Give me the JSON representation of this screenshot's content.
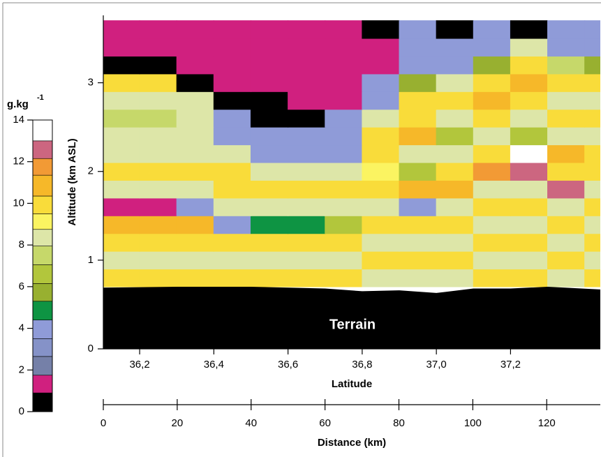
{
  "chart_data": {
    "type": "contour",
    "y_label": "Altitude (km ASL)",
    "x_label": "Latitude",
    "x2_label": "Distance (km)",
    "annotation": "Terrain",
    "xlim": [
      36.102,
      37.442
    ],
    "xticks": [
      {
        "value": 36.2,
        "label": "36,2"
      },
      {
        "value": 36.4,
        "label": "36,4"
      },
      {
        "value": 36.6,
        "label": "36,6"
      },
      {
        "value": 36.8,
        "label": "36,8"
      },
      {
        "value": 37.0,
        "label": "37,0"
      },
      {
        "value": 37.2,
        "label": "37,2"
      }
    ],
    "ylim": [
      0,
      3.76
    ],
    "yticks": [
      0,
      1,
      2,
      3
    ],
    "x2lim": [
      0,
      134.5
    ],
    "x2ticks": [
      0,
      20,
      40,
      60,
      80,
      100,
      120
    ],
    "colorbar": {
      "unit": "g.kg",
      "unit_exponent": "-1",
      "lim": [
        0,
        14
      ],
      "ticks": [
        0,
        2,
        4,
        6,
        8,
        10,
        12,
        14
      ],
      "levels": [
        0,
        0.9,
        1.75,
        2.65,
        3.5,
        4.4,
        5.3,
        6.15,
        7.05,
        7.95,
        8.75,
        9.5,
        10.35,
        11.35,
        12.15,
        13,
        14
      ],
      "colors": [
        "#000000",
        "#d0207f",
        "#7580a8",
        "#8592c8",
        "#8f9bd8",
        "#0e9443",
        "#98b030",
        "#b2c63c",
        "#c6d86a",
        "#dde6a8",
        "#fbf461",
        "#f9dc3a",
        "#f6b829",
        "#f29a35",
        "#cc6680",
        "#ffffff"
      ]
    },
    "x": [
      36.15,
      36.25,
      36.35,
      36.45,
      36.55,
      36.65,
      36.75,
      36.85,
      36.95,
      37.05,
      37.15,
      37.25,
      37.35,
      37.45
    ],
    "y": [
      0.8,
      1.0,
      1.2,
      1.4,
      1.6,
      1.8,
      2.0,
      2.2,
      2.4,
      2.6,
      2.8,
      3.0,
      3.2,
      3.4,
      3.6
    ],
    "z": [
      [
        9.5,
        9.5,
        9.5,
        9.5,
        9.5,
        9.5,
        9.5,
        8.5,
        8.5,
        8.5,
        10,
        10,
        8.5,
        10
      ],
      [
        8,
        8,
        8.5,
        8.5,
        8.5,
        8.5,
        8.5,
        9.5,
        10,
        10,
        8.5,
        8.5,
        10,
        8.5
      ],
      [
        10,
        10,
        10,
        10,
        10,
        10,
        9.5,
        8,
        8.5,
        8.5,
        10,
        10,
        8.5,
        10
      ],
      [
        11,
        11,
        11,
        3.5,
        5,
        5,
        6.5,
        10,
        10,
        10,
        8.5,
        8.5,
        10,
        8.5
      ],
      [
        1,
        1,
        4,
        8.5,
        8.5,
        8.5,
        8,
        8.5,
        3.5,
        8.5,
        10,
        10,
        8.5,
        10
      ],
      [
        8.5,
        8.5,
        8.5,
        10,
        10,
        10,
        10,
        10,
        11,
        11,
        8.5,
        8.5,
        12.5,
        8.5
      ],
      [
        9.5,
        9.5,
        9.5,
        9.5,
        8,
        8,
        8,
        9,
        6.5,
        10,
        12,
        12.5,
        10,
        10
      ],
      [
        8,
        8,
        8,
        8,
        3.5,
        3.5,
        3.5,
        10,
        8.5,
        8.5,
        10,
        13.5,
        11,
        10
      ],
      [
        8.5,
        8.5,
        8.5,
        3.5,
        3.5,
        3.5,
        3.5,
        10,
        10.5,
        6.5,
        8,
        7,
        8.5,
        8.5
      ],
      [
        7.5,
        7.5,
        8,
        3.5,
        0.5,
        0.5,
        3.5,
        8,
        10,
        8,
        10,
        8.5,
        10,
        10
      ],
      [
        8.5,
        8.5,
        8.5,
        0.5,
        0.5,
        1.5,
        1.5,
        3.5,
        10,
        10,
        11,
        10,
        8.5,
        8.5
      ],
      [
        10,
        10,
        0.5,
        1.5,
        1.5,
        1.5,
        1.5,
        3.5,
        6,
        8,
        10,
        11,
        10,
        10
      ],
      [
        0.5,
        0.5,
        1.5,
        1.5,
        1.5,
        1.5,
        1.5,
        1.5,
        3.5,
        3.5,
        6,
        10,
        7.5,
        6
      ],
      [
        1.5,
        1.5,
        1.5,
        1.5,
        1.5,
        1.5,
        1.5,
        1.5,
        3.5,
        3.5,
        3.5,
        8,
        3.5,
        3.5
      ],
      [
        1.5,
        1.5,
        1.5,
        1.5,
        1.5,
        1.5,
        1.5,
        0.5,
        3.5,
        0.5,
        3.5,
        0.5,
        3.5,
        3.5
      ]
    ],
    "terrain": {
      "x": [
        36.102,
        36.3,
        36.5,
        36.7,
        36.8,
        36.9,
        37.0,
        37.1,
        37.2,
        37.3,
        37.442
      ],
      "height": [
        0.69,
        0.7,
        0.7,
        0.68,
        0.65,
        0.66,
        0.63,
        0.68,
        0.68,
        0.7,
        0.67
      ]
    }
  }
}
